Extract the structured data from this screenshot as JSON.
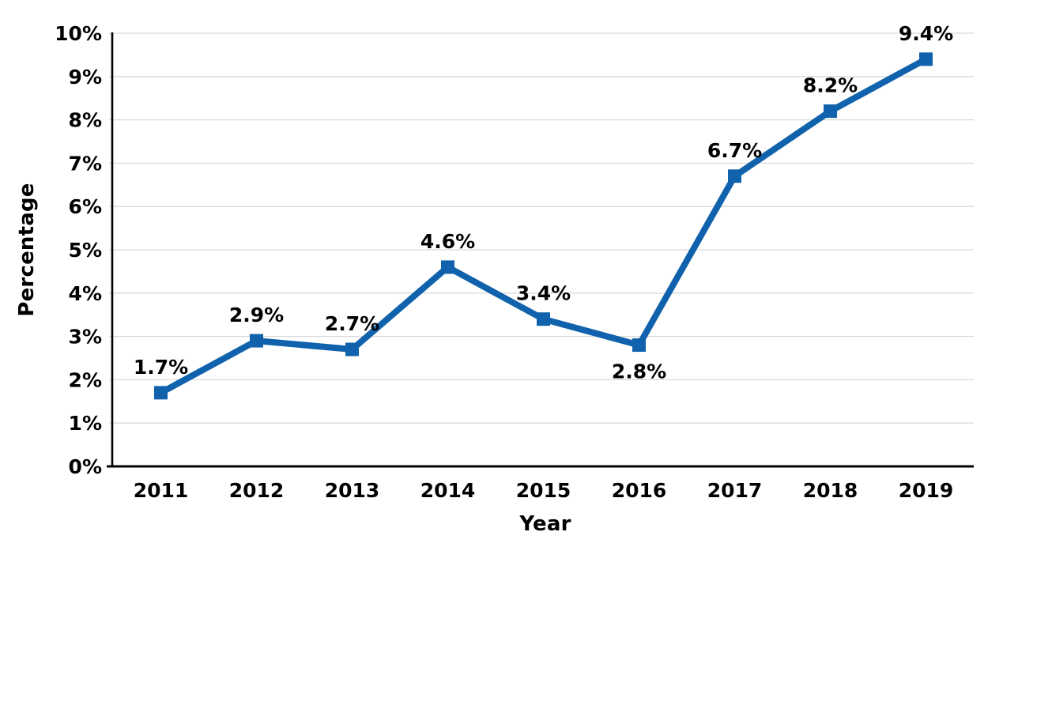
{
  "chart_data": {
    "type": "line",
    "title": "",
    "xlabel": "Year",
    "ylabel": "Percentage",
    "categories": [
      "2011",
      "2012",
      "2013",
      "2014",
      "2015",
      "2016",
      "2017",
      "2018",
      "2019"
    ],
    "series": [
      {
        "name": "Percentage",
        "values": [
          1.7,
          2.9,
          2.7,
          4.6,
          3.4,
          2.8,
          6.7,
          8.2,
          9.4
        ],
        "data_labels": [
          "1.7%",
          "2.9%",
          "2.7%",
          "4.6%",
          "3.4%",
          "2.8%",
          "6.7%",
          "8.2%",
          "9.4%"
        ],
        "label_positions": [
          "above",
          "above",
          "above",
          "above",
          "above",
          "below",
          "above",
          "above",
          "above"
        ],
        "color": "#1062AC",
        "marker": "square"
      }
    ],
    "ylim": [
      0,
      10
    ],
    "y_tick_step": 1,
    "y_tick_labels": [
      "0%",
      "1%",
      "2%",
      "3%",
      "4%",
      "5%",
      "6%",
      "7%",
      "8%",
      "9%",
      "10%"
    ],
    "grid": true,
    "legend_position": "none",
    "colors": {
      "gridline": "#d9d9d9",
      "axis": "#000000",
      "text": "#000000",
      "background": "#ffffff"
    }
  }
}
